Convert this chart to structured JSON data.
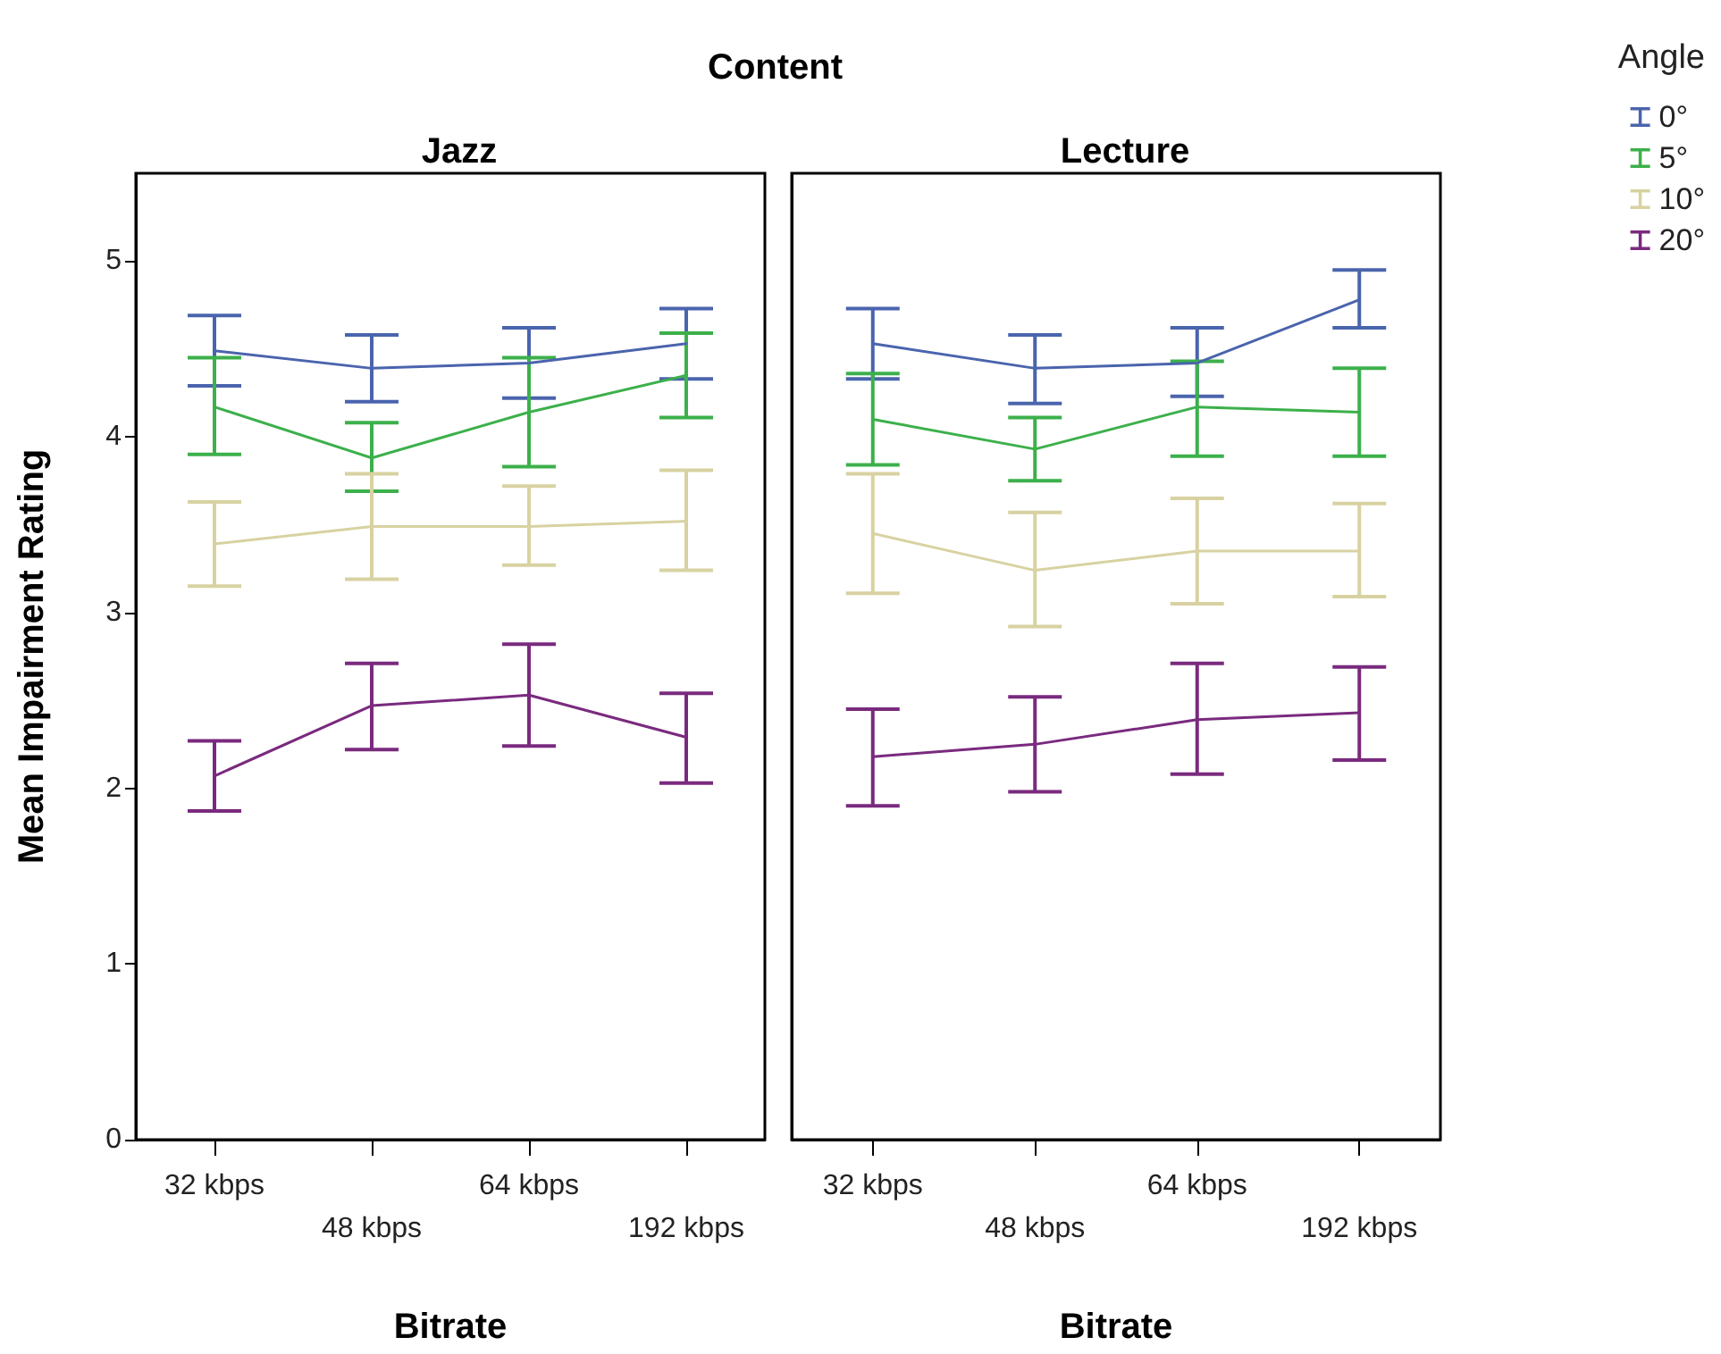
{
  "chart_data": [
    {
      "type": "line",
      "title": "Jazz",
      "xlabel": "Bitrate",
      "ylabel": "Mean Impairment Rating",
      "annotations": [
        "Content"
      ],
      "categories": [
        "32 kbps",
        "48 kbps",
        "64 kbps",
        "192 kbps"
      ],
      "series": [
        {
          "name": "0°",
          "color": "#4a64ad",
          "values": [
            4.49,
            4.39,
            4.42,
            4.53
          ],
          "errors": [
            [
              4.29,
              4.69
            ],
            [
              4.2,
              4.58
            ],
            [
              4.22,
              4.62
            ],
            [
              4.33,
              4.73
            ]
          ]
        },
        {
          "name": "5°",
          "color": "#3cb04b",
          "values": [
            4.17,
            3.88,
            4.14,
            4.35
          ],
          "errors": [
            [
              3.9,
              4.45
            ],
            [
              3.69,
              4.08
            ],
            [
              3.83,
              4.45
            ],
            [
              4.11,
              4.59
            ]
          ]
        },
        {
          "name": "10°",
          "color": "#d8d2a2",
          "values": [
            3.39,
            3.49,
            3.49,
            3.52
          ],
          "errors": [
            [
              3.15,
              3.63
            ],
            [
              3.19,
              3.79
            ],
            [
              3.27,
              3.72
            ],
            [
              3.24,
              3.81
            ]
          ]
        },
        {
          "name": "20°",
          "color": "#7a2a7e",
          "values": [
            2.07,
            2.47,
            2.53,
            2.29
          ],
          "errors": [
            [
              1.87,
              2.27
            ],
            [
              2.22,
              2.71
            ],
            [
              2.24,
              2.82
            ],
            [
              2.03,
              2.54
            ]
          ]
        }
      ],
      "ylim": [
        0,
        5.5
      ],
      "yticks": [
        0,
        1,
        2,
        3,
        4,
        5
      ],
      "grid": false,
      "legend": "right",
      "legend_title": "Angle",
      "marker": "none",
      "line_style": "solid"
    },
    {
      "type": "line",
      "title": "Lecture",
      "xlabel": "Bitrate",
      "categories": [
        "32 kbps",
        "48 kbps",
        "64 kbps",
        "192 kbps"
      ],
      "series": [
        {
          "color": "#4a64ad",
          "values": [
            4.53,
            4.39,
            4.42,
            4.78
          ],
          "errors": [
            [
              4.33,
              4.73
            ],
            [
              4.19,
              4.58
            ],
            [
              4.23,
              4.62
            ],
            [
              4.62,
              4.95
            ]
          ]
        },
        {
          "color": "#3cb04b",
          "values": [
            4.1,
            3.93,
            4.17,
            4.14
          ],
          "errors": [
            [
              3.84,
              4.36
            ],
            [
              3.75,
              4.11
            ],
            [
              3.89,
              4.43
            ],
            [
              3.89,
              4.39
            ]
          ]
        },
        {
          "color": "#d8d2a2",
          "values": [
            3.45,
            3.24,
            3.35,
            3.35
          ],
          "errors": [
            [
              3.11,
              3.79
            ],
            [
              2.92,
              3.57
            ],
            [
              3.05,
              3.65
            ],
            [
              3.09,
              3.62
            ]
          ]
        },
        {
          "color": "#7a2a7e",
          "values": [
            2.18,
            2.25,
            2.39,
            2.43
          ],
          "errors": [
            [
              1.9,
              2.45
            ],
            [
              1.98,
              2.52
            ],
            [
              2.08,
              2.71
            ],
            [
              2.16,
              2.69
            ]
          ]
        }
      ],
      "ylim": [
        0,
        5.5
      ],
      "yticks": [
        0,
        1,
        2,
        3,
        4,
        5
      ],
      "tick_labels": "x",
      "grid": false,
      "marker": "none",
      "line_style": "solid"
    }
  ]
}
